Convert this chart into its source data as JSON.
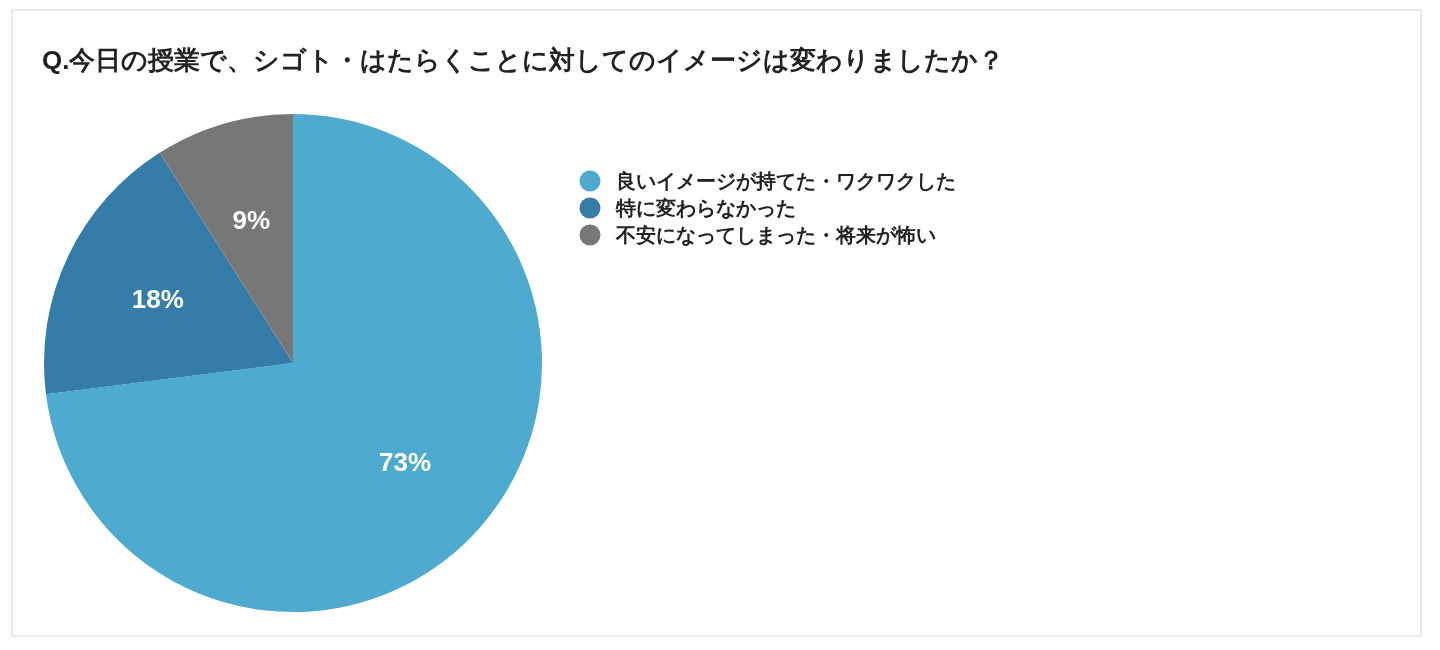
{
  "chart_data": {
    "type": "pie",
    "title": "Q.今日の授業で、シゴト・はたらくことに対してのイメージは変わりましたか？",
    "categories": [
      "良いイメージが持てた・ワクワクした",
      "特に変わらなかった",
      "不安になってしまった・将来が怖い"
    ],
    "values": [
      73,
      18,
      9
    ],
    "colors": [
      "#4eaacf",
      "#367ca8",
      "#777777"
    ],
    "value_labels": [
      "73%",
      "18%",
      "9%"
    ],
    "legend": "right"
  }
}
